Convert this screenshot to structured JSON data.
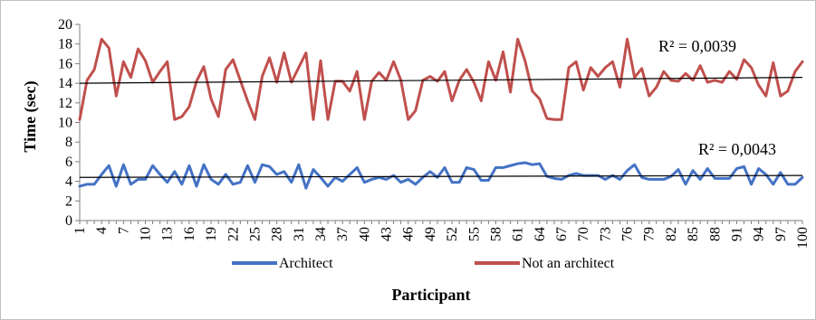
{
  "chart_data": {
    "type": "line",
    "title": "",
    "xlabel": "Participant",
    "ylabel": "Time (sec)",
    "xlim": [
      1,
      100
    ],
    "ylim": [
      0,
      20
    ],
    "y_ticks": [
      0,
      2,
      4,
      6,
      8,
      10,
      12,
      14,
      16,
      18,
      20
    ],
    "x_ticks": [
      1,
      4,
      7,
      10,
      13,
      16,
      19,
      22,
      25,
      28,
      31,
      34,
      37,
      40,
      43,
      46,
      49,
      52,
      55,
      58,
      61,
      64,
      67,
      70,
      73,
      76,
      79,
      82,
      85,
      88,
      91,
      94,
      97,
      100
    ],
    "grid": false,
    "legend": "bottom",
    "series": [
      {
        "name": "Architect",
        "color": "#4472c4",
        "values": [
          3.5,
          3.7,
          3.7,
          4.7,
          5.6,
          3.5,
          5.7,
          3.7,
          4.2,
          4.2,
          5.6,
          4.7,
          3.9,
          5.0,
          3.7,
          5.6,
          3.5,
          5.7,
          4.2,
          3.7,
          4.7,
          3.7,
          3.9,
          5.6,
          3.9,
          5.7,
          5.5,
          4.7,
          5.0,
          3.9,
          5.7,
          3.3,
          5.2,
          4.4,
          3.5,
          4.4,
          4.0,
          4.7,
          5.4,
          3.9,
          4.2,
          4.4,
          4.2,
          4.6,
          3.9,
          4.2,
          3.7,
          4.4,
          5.0,
          4.4,
          5.4,
          3.9,
          3.9,
          5.4,
          5.2,
          4.1,
          4.1,
          5.4,
          5.4,
          5.6,
          5.8,
          5.9,
          5.7,
          5.8,
          4.5,
          4.3,
          4.2,
          4.6,
          4.8,
          4.6,
          4.6,
          4.6,
          4.2,
          4.6,
          4.2,
          5.1,
          5.7,
          4.4,
          4.2,
          4.2,
          4.2,
          4.5,
          5.2,
          3.7,
          5.1,
          4.2,
          5.3,
          4.3,
          4.3,
          4.3,
          5.3,
          5.5,
          3.7,
          5.3,
          4.7,
          3.7,
          4.9,
          3.7,
          3.7,
          4.4
        ],
        "trendline": {
          "type": "linear",
          "start": 4.4,
          "end": 4.6,
          "r2_label": "R² = 0,0043"
        }
      },
      {
        "name": "Not an architect",
        "color": "#c0504d",
        "values": [
          10.3,
          14.3,
          15.4,
          18.5,
          17.6,
          12.7,
          16.2,
          14.6,
          17.5,
          16.3,
          14.1,
          15.2,
          16.2,
          10.3,
          10.6,
          11.6,
          14.2,
          15.7,
          12.4,
          10.6,
          15.4,
          16.4,
          14.3,
          12.2,
          10.3,
          14.7,
          16.6,
          14.1,
          17.1,
          14.1,
          15.6,
          17.1,
          10.3,
          16.3,
          10.3,
          14.2,
          14.2,
          13.2,
          15.2,
          10.3,
          14.2,
          15.1,
          14.3,
          16.2,
          14.3,
          10.3,
          11.2,
          14.3,
          14.7,
          14.2,
          15.2,
          12.2,
          14.3,
          15.4,
          14.1,
          12.2,
          16.2,
          14.3,
          17.2,
          13.1,
          18.5,
          16.3,
          13.2,
          12.4,
          10.4,
          10.3,
          10.3,
          15.6,
          16.2,
          13.3,
          15.6,
          14.7,
          15.6,
          16.2,
          13.6,
          18.5,
          14.6,
          15.5,
          12.7,
          13.6,
          15.2,
          14.3,
          14.2,
          15.0,
          14.3,
          15.8,
          14.1,
          14.3,
          14.1,
          15.2,
          14.4,
          16.4,
          15.6,
          13.8,
          12.7,
          16.1,
          12.7,
          13.2,
          15.2,
          16.2
        ],
        "trendline": {
          "type": "linear",
          "start": 14.0,
          "end": 14.6,
          "r2_label": "R² = 0,0039"
        }
      }
    ]
  }
}
